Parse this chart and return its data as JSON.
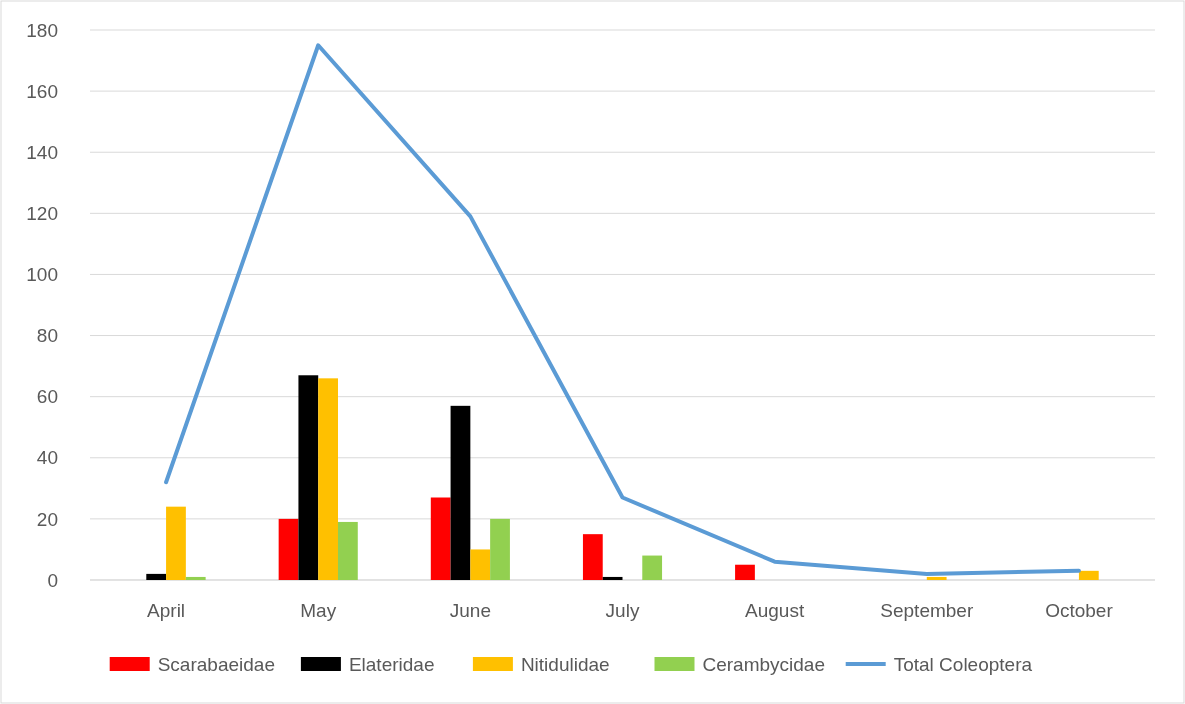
{
  "chart_data": {
    "type": "bar",
    "categories": [
      "April",
      "May",
      "June",
      "July",
      "August",
      "September",
      "October"
    ],
    "series": [
      {
        "name": "Scarabaeidae",
        "color": "#ff0000",
        "values": [
          0,
          20,
          27,
          15,
          5,
          0,
          0
        ]
      },
      {
        "name": "Elateridae",
        "color": "#000000",
        "values": [
          2,
          67,
          57,
          1,
          0,
          0,
          0
        ]
      },
      {
        "name": "Nitidulidae",
        "color": "#ffc000",
        "values": [
          24,
          66,
          10,
          0,
          0,
          1,
          3
        ]
      },
      {
        "name": "Cerambycidae",
        "color": "#92d050",
        "values": [
          1,
          19,
          20,
          8,
          0,
          0,
          0
        ]
      },
      {
        "name": "Total Coleoptera",
        "type": "line",
        "color": "#5b9bd5",
        "values": [
          32,
          175,
          119,
          27,
          6,
          2,
          3
        ]
      }
    ],
    "ylim": [
      0,
      180
    ],
    "yticks": [
      0,
      20,
      40,
      60,
      80,
      100,
      120,
      140,
      160,
      180
    ],
    "grid": "y",
    "legend": "bottom",
    "marker": "none",
    "line_style": "solid"
  }
}
